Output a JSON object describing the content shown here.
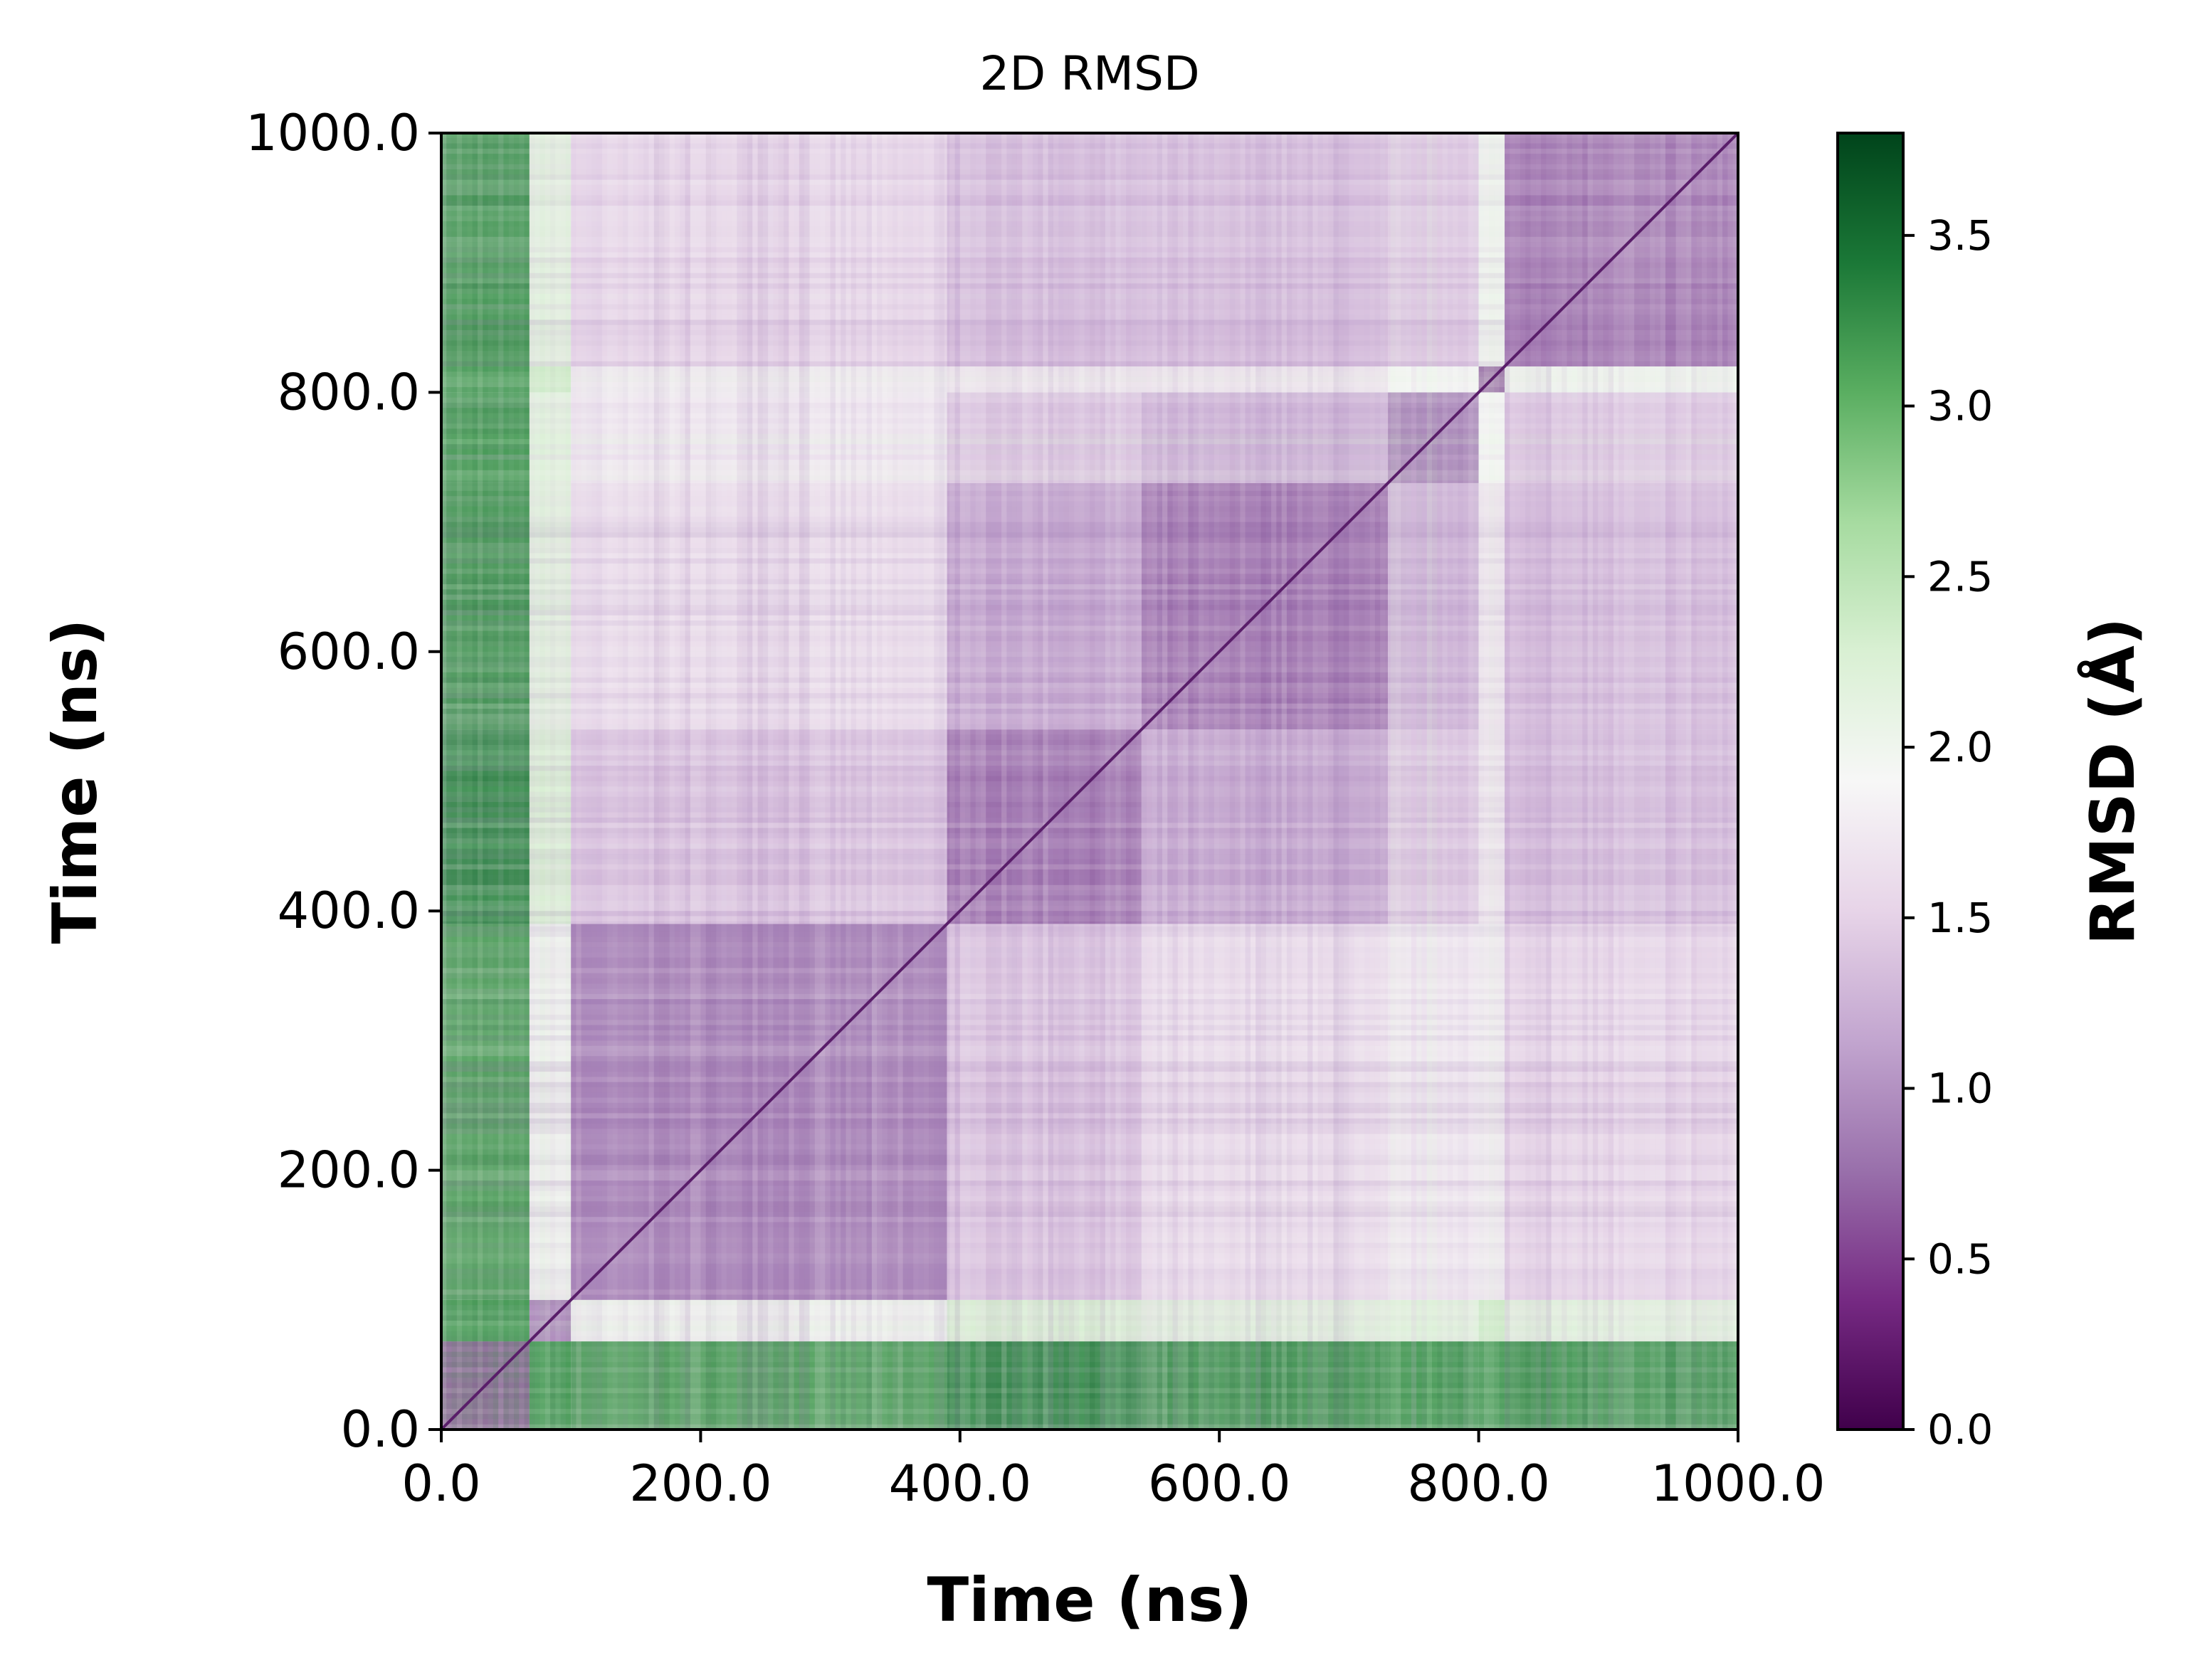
{
  "chart_data": {
    "type": "heatmap",
    "title": "2D RMSD",
    "xlabel": "Time (ns)",
    "ylabel": "Time (ns)",
    "xlim": [
      0,
      1000
    ],
    "ylim": [
      0,
      1000
    ],
    "x_ticks": [
      "0.0",
      "200.0",
      "400.0",
      "600.0",
      "800.0",
      "1000.0"
    ],
    "x_tick_values": [
      0,
      200,
      400,
      600,
      800,
      1000
    ],
    "y_ticks": [
      "0.0",
      "200.0",
      "400.0",
      "600.0",
      "800.0",
      "1000.0"
    ],
    "y_tick_values": [
      0,
      200,
      400,
      600,
      800,
      1000
    ],
    "colorbar": {
      "label": "RMSD (Å)",
      "colormap": "PRGn",
      "range": [
        0.0,
        3.8
      ],
      "ticks": [
        "0.0",
        "0.5",
        "1.0",
        "1.5",
        "2.0",
        "2.5",
        "3.0",
        "3.5"
      ],
      "tick_values": [
        0.0,
        0.5,
        1.0,
        1.5,
        2.0,
        2.5,
        3.0,
        3.5
      ]
    },
    "blocks": [
      {
        "start": 0,
        "end": 68,
        "level": 2.6
      },
      {
        "start": 68,
        "end": 100,
        "level": 1.9
      },
      {
        "start": 100,
        "end": 390,
        "level": 1.3
      },
      {
        "start": 390,
        "end": 540,
        "level": 1.4
      },
      {
        "start": 540,
        "end": 730,
        "level": 1.3
      },
      {
        "start": 730,
        "end": 800,
        "level": 1.8
      },
      {
        "start": 800,
        "end": 820,
        "level": 1.9
      },
      {
        "start": 820,
        "end": 1000,
        "level": 1.5
      }
    ],
    "block_rmsd": [
      [
        0.6,
        3.3,
        3.2,
        3.4,
        3.3,
        3.3,
        3.3,
        3.3
      ],
      [
        3.3,
        0.8,
        2.0,
        2.3,
        2.2,
        2.2,
        2.4,
        2.2
      ],
      [
        3.2,
        2.0,
        0.8,
        1.4,
        1.7,
        1.8,
        1.8,
        1.6
      ],
      [
        3.4,
        2.3,
        1.4,
        0.7,
        1.1,
        1.4,
        1.7,
        1.3
      ],
      [
        3.3,
        2.2,
        1.7,
        1.1,
        0.7,
        1.2,
        1.7,
        1.3
      ],
      [
        3.3,
        2.2,
        1.8,
        1.4,
        1.2,
        0.8,
        1.9,
        1.4
      ],
      [
        3.3,
        2.4,
        1.8,
        1.7,
        1.7,
        1.9,
        0.6,
        2.0
      ],
      [
        3.3,
        2.2,
        1.6,
        1.3,
        1.3,
        1.4,
        2.0,
        0.7
      ]
    ]
  }
}
